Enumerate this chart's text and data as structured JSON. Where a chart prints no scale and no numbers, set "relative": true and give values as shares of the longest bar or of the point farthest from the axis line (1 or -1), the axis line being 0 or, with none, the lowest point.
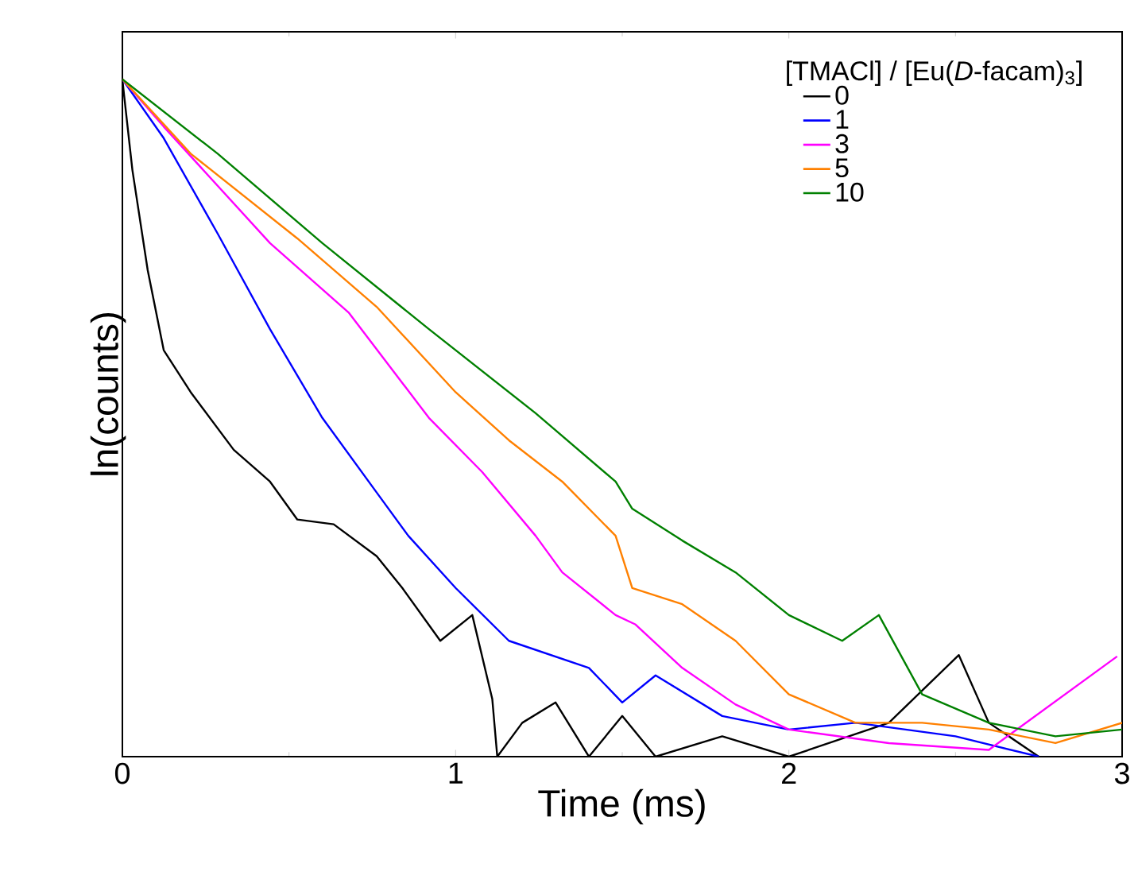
{
  "chart_data": {
    "type": "line",
    "relative": true,
    "xlabel": "Time (ms)",
    "ylabel": "ln(counts)",
    "legend_title": "[TMACl] / [Eu(*D*-facam)$_{3}$]",
    "legend": "top right",
    "xlim": [
      0,
      3
    ],
    "xticks": [
      0,
      1,
      2,
      3
    ],
    "line_style": "solid",
    "marker": "none",
    "series": [
      {
        "name": "0",
        "color": "#000000",
        "x": [
          0,
          0.005,
          0.03,
          0.076,
          0.124,
          0.205,
          0.334,
          0.443,
          0.525,
          0.634,
          0.763,
          0.84,
          0.954,
          1.05,
          1.11,
          1.125,
          1.2,
          1.3,
          1.4,
          1.5,
          1.6,
          1.8,
          2.0,
          2.3,
          2.51,
          2.6,
          2.75
        ],
        "values": [
          1,
          0.977,
          0.866,
          0.718,
          0.6,
          0.538,
          0.453,
          0.406,
          0.35,
          0.343,
          0.296,
          0.249,
          0.171,
          0.209,
          0.085,
          0,
          0.05,
          0.08,
          0,
          0.06,
          0,
          0.03,
          0,
          0.05,
          0.15,
          0.05,
          0
        ]
      },
      {
        "name": "1",
        "color": "#0000ff",
        "x": [
          0,
          0.124,
          0.286,
          0.443,
          0.6,
          0.763,
          0.858,
          1.0,
          1.16,
          1.4,
          1.5,
          1.6,
          1.8,
          2.0,
          2.2,
          2.5,
          2.75
        ],
        "values": [
          1,
          0.913,
          0.772,
          0.631,
          0.5,
          0.39,
          0.326,
          0.249,
          0.171,
          0.131,
          0.08,
          0.12,
          0.06,
          0.04,
          0.05,
          0.03,
          0
        ]
      },
      {
        "name": "3",
        "color": "#ff00ff",
        "x": [
          0,
          0.124,
          0.443,
          0.68,
          0.92,
          1.08,
          1.24,
          1.32,
          1.48,
          1.54,
          1.68,
          1.84,
          2.0,
          2.3,
          2.6,
          2.985
        ],
        "values": [
          1,
          0.93,
          0.758,
          0.655,
          0.5,
          0.42,
          0.326,
          0.272,
          0.209,
          0.195,
          0.131,
          0.077,
          0.04,
          0.02,
          0.01,
          0.148
        ]
      },
      {
        "name": "5",
        "color": "#ff8000",
        "x": [
          0,
          0.205,
          0.525,
          0.763,
          1.0,
          1.16,
          1.32,
          1.48,
          1.53,
          1.68,
          1.84,
          2.0,
          2.2,
          2.4,
          2.6,
          2.8,
          3.0
        ],
        "values": [
          1,
          0.89,
          0.765,
          0.664,
          0.538,
          0.467,
          0.406,
          0.326,
          0.249,
          0.225,
          0.171,
          0.092,
          0.05,
          0.05,
          0.04,
          0.02,
          0.05
        ]
      },
      {
        "name": "10",
        "color": "#008000",
        "x": [
          0,
          0.286,
          0.6,
          0.92,
          1.24,
          1.48,
          1.53,
          1.68,
          1.84,
          2.0,
          2.16,
          2.27,
          2.4,
          2.6,
          2.8,
          3.0
        ],
        "values": [
          1,
          0.89,
          0.758,
          0.631,
          0.507,
          0.406,
          0.366,
          0.319,
          0.272,
          0.209,
          0.171,
          0.209,
          0.092,
          0.05,
          0.03,
          0.04
        ]
      }
    ]
  }
}
